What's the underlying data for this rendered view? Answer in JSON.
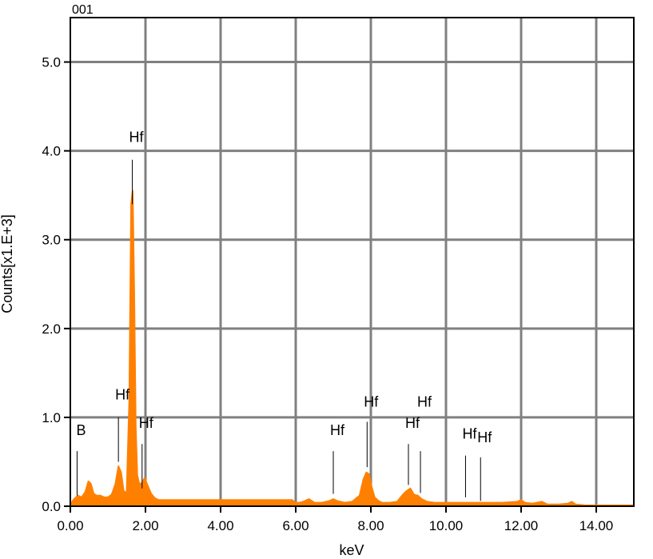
{
  "chart_data": {
    "type": "area",
    "spectrum_id": "001",
    "xlabel": "keV",
    "ylabel": "Counts[x1.E+3]",
    "xlim": [
      0,
      15
    ],
    "ylim": [
      0,
      5.5
    ],
    "x_ticks": [
      "0.00",
      "2.00",
      "4.00",
      "6.00",
      "8.00",
      "10.00",
      "12.00",
      "14.00"
    ],
    "x_tick_values": [
      0,
      2,
      4,
      6,
      8,
      10,
      12,
      14
    ],
    "y_ticks": [
      "0.0",
      "1.0",
      "2.0",
      "3.0",
      "4.0",
      "5.0"
    ],
    "y_tick_values": [
      0,
      1,
      2,
      3,
      4,
      5
    ],
    "grid": true,
    "fill_color": "#ff8000",
    "grid_color": "#808080",
    "series": [
      {
        "x": [
          0.0,
          0.05,
          0.1,
          0.2,
          0.3,
          0.4,
          0.48,
          0.55,
          0.62,
          0.7,
          0.8,
          0.9,
          1.0,
          1.1,
          1.2,
          1.28,
          1.35,
          1.42,
          1.5,
          1.57,
          1.62,
          1.66,
          1.7,
          1.74,
          1.78,
          1.83,
          1.88,
          1.93,
          1.98,
          2.05,
          2.15,
          2.25,
          2.35,
          2.6,
          3.0,
          4.0,
          5.0,
          5.9,
          6.0,
          6.1,
          6.2,
          6.35,
          6.5,
          6.7,
          6.9,
          7.0,
          7.1,
          7.3,
          7.5,
          7.7,
          7.8,
          7.88,
          7.95,
          8.02,
          8.1,
          8.2,
          8.3,
          8.5,
          8.7,
          8.85,
          8.95,
          9.05,
          9.15,
          9.25,
          9.35,
          9.5,
          9.7,
          10.0,
          10.5,
          11.0,
          11.5,
          11.9,
          12.0,
          12.1,
          12.3,
          12.55,
          12.7,
          13.0,
          13.25,
          13.35,
          13.45,
          13.7,
          14.0,
          14.5,
          15.0
        ],
        "y": [
          0.0,
          0.05,
          0.08,
          0.12,
          0.1,
          0.16,
          0.28,
          0.25,
          0.14,
          0.12,
          0.12,
          0.1,
          0.1,
          0.13,
          0.25,
          0.45,
          0.38,
          0.17,
          0.15,
          1.2,
          3.4,
          3.55,
          2.4,
          0.9,
          0.35,
          0.26,
          0.25,
          0.28,
          0.32,
          0.24,
          0.14,
          0.09,
          0.07,
          0.07,
          0.07,
          0.07,
          0.07,
          0.07,
          0.04,
          0.04,
          0.05,
          0.08,
          0.04,
          0.04,
          0.06,
          0.08,
          0.06,
          0.04,
          0.05,
          0.12,
          0.3,
          0.38,
          0.36,
          0.22,
          0.1,
          0.06,
          0.04,
          0.04,
          0.05,
          0.13,
          0.17,
          0.2,
          0.13,
          0.12,
          0.08,
          0.05,
          0.04,
          0.04,
          0.04,
          0.04,
          0.04,
          0.05,
          0.07,
          0.04,
          0.03,
          0.05,
          0.02,
          0.02,
          0.03,
          0.05,
          0.02,
          0.01,
          0.01,
          0.01,
          0.01
        ]
      }
    ],
    "annotations": [
      {
        "text": "Hf",
        "x": 1.65,
        "y_line_top": 3.9,
        "y_line_bottom": 3.4,
        "label_y": 4.1
      },
      {
        "text": "Hf",
        "x": 1.28,
        "y_line_top": 1.0,
        "y_line_bottom": 0.5,
        "label_y": 1.2
      },
      {
        "text": "B",
        "x": 0.18,
        "y_line_top": 0.62,
        "y_line_bottom": 0.12,
        "label_y": 0.8
      },
      {
        "text": "Hf",
        "x": 1.91,
        "y_line_top": 0.7,
        "y_line_bottom": 0.2,
        "label_y": 0.88
      },
      {
        "text": "Hf",
        "x": 7.0,
        "y_line_top": 0.62,
        "y_line_bottom": 0.14,
        "label_y": 0.8
      },
      {
        "text": "Hf",
        "x": 7.9,
        "y_line_top": 0.95,
        "y_line_bottom": 0.44,
        "label_y": 1.12
      },
      {
        "text": "Hf",
        "x": 9.0,
        "y_line_top": 0.7,
        "y_line_bottom": 0.24,
        "label_y": 0.88
      },
      {
        "text": "Hf",
        "x": 9.32,
        "y_line_top": 0.62,
        "y_line_bottom": 0.15,
        "label_y": 1.12
      },
      {
        "text": "Hf",
        "x": 10.52,
        "y_line_top": 0.57,
        "y_line_bottom": 0.1,
        "label_y": 0.76
      },
      {
        "text": "Hf",
        "x": 10.92,
        "y_line_top": 0.55,
        "y_line_bottom": 0.06,
        "label_y": 0.72
      }
    ]
  }
}
